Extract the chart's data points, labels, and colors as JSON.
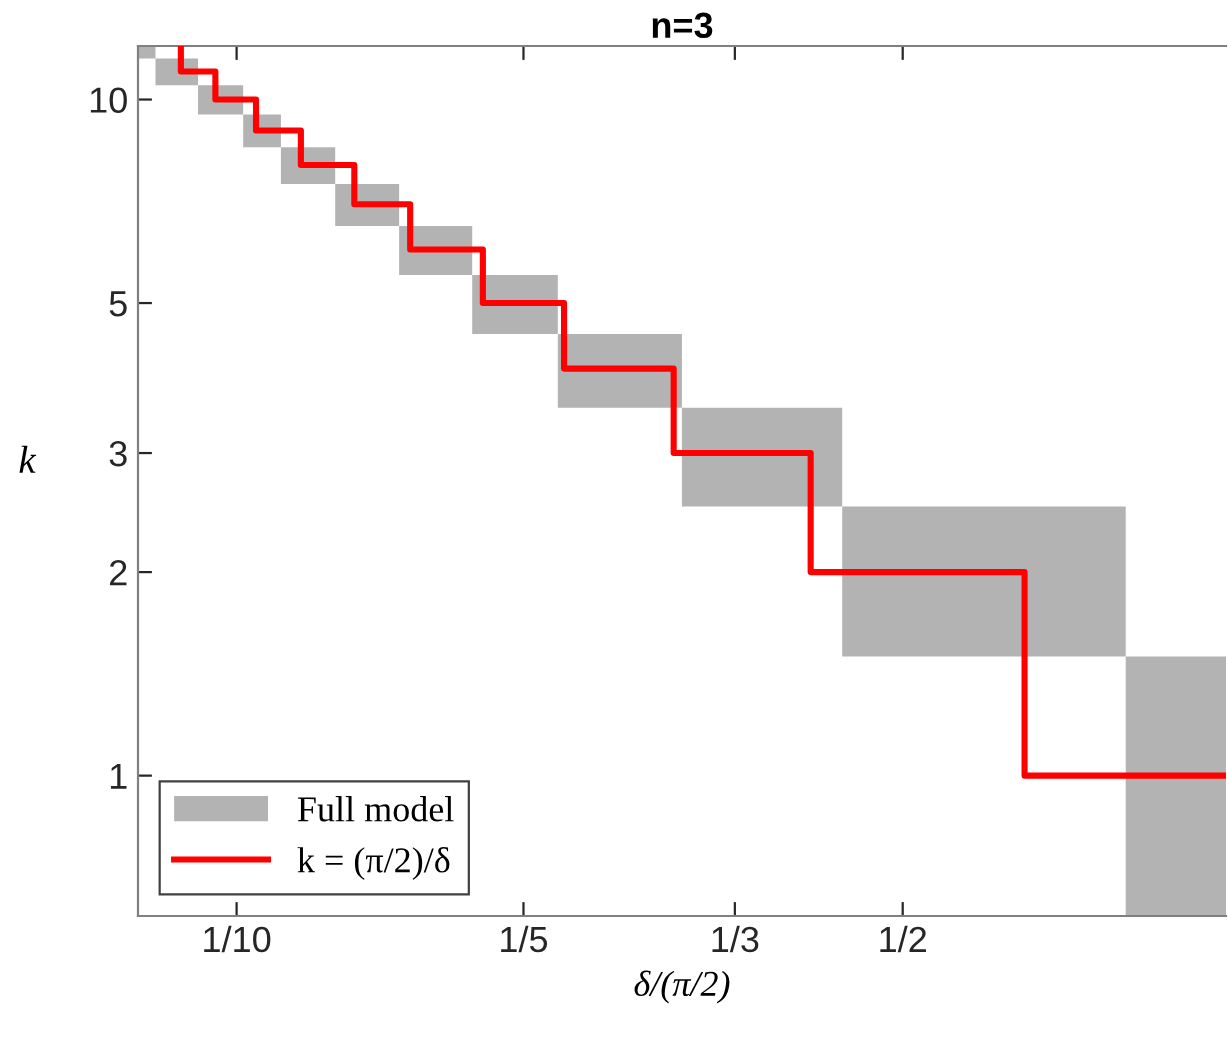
{
  "chart_data": {
    "type": "histogram",
    "title": "n=3",
    "xlabel": "δ/(π/2)",
    "ylabel": "k",
    "log": "xy",
    "grid": false,
    "legend": "bottom left",
    "xlim": [
      0.0788,
      1.092
    ],
    "xticks": [
      {
        "value": 0.1,
        "label": "1/10"
      },
      {
        "value": 0.2,
        "label": "1/5"
      },
      {
        "value": 0.3333,
        "label": "1/3"
      },
      {
        "value": 0.5,
        "label": "1/2"
      }
    ],
    "ylim": [
      0.62,
      12
    ],
    "yticks": [
      1,
      2,
      3,
      5,
      10
    ],
    "series": [
      {
        "name": "Full model",
        "color": "#b3b3b3",
        "bins": [
          0.0788,
          0.0822,
          0.0911,
          0.1016,
          0.1113,
          0.1269,
          0.1481,
          0.1767,
          0.2173,
          0.2933,
          0.432,
          0.857,
          1.092
        ],
        "base": [
          11.5,
          10.5,
          9.5,
          8.5,
          7.5,
          6.5,
          5.5,
          4.5,
          3.5,
          2.5,
          1.5,
          0.62
        ],
        "values": [
          0.5,
          1,
          1,
          1,
          1,
          1,
          1,
          1,
          1,
          1,
          1,
          0.88
        ]
      },
      {
        "name": "k = (π/2)/δ",
        "type": "step",
        "color": "#ff0000",
        "x": [
          0.0874,
          0.0874,
          0.095,
          0.1048,
          0.1168,
          0.1329,
          0.1521,
          0.1813,
          0.2206,
          0.2875,
          0.4003,
          0.6712,
          1.092
        ],
        "values": [
          12,
          11,
          10,
          9,
          8,
          7,
          6,
          5,
          4,
          3,
          2,
          1,
          1
        ]
      }
    ]
  }
}
